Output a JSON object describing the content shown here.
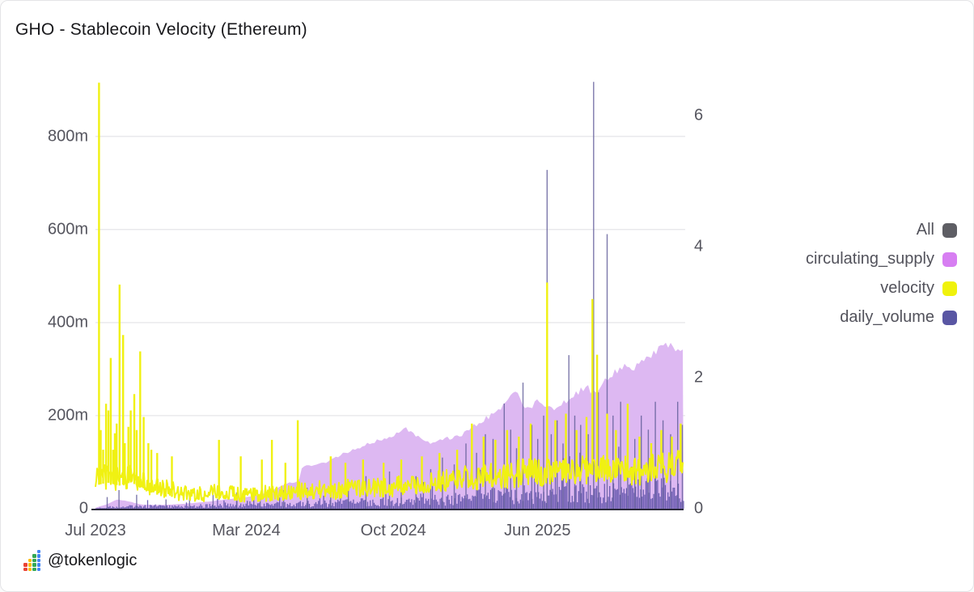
{
  "title": "GHO - Stablecoin Velocity (Ethereum)",
  "footer": {
    "handle": "@tokenlogic",
    "logo": {
      "column_colors": [
        "#ea4335",
        "#fbbc05",
        "#34a853",
        "#4285f4"
      ],
      "column_heights": [
        2,
        3,
        4,
        5
      ]
    }
  },
  "legend": [
    {
      "label": "All",
      "color": "#5e5e64"
    },
    {
      "label": "circulating_supply",
      "color": "#d77ef2"
    },
    {
      "label": "velocity",
      "color": "#f0f20c"
    },
    {
      "label": "daily_volume",
      "color": "#5956a3"
    }
  ],
  "chart_data": {
    "type": "area",
    "title": "GHO - Stablecoin Velocity (Ethereum)",
    "x_axis": {
      "ticks": [
        {
          "pos": 0.0,
          "label": "Jul 2023"
        },
        {
          "pos": 0.2565,
          "label": "Mar 2024"
        },
        {
          "pos": 0.5065,
          "label": "Oct 2024"
        },
        {
          "pos": 0.7515,
          "label": "Jun 2025"
        }
      ]
    },
    "left_axis": {
      "unit": "millions",
      "max": 928,
      "ticks": [
        {
          "value": 0,
          "label": "0"
        },
        {
          "value": 200,
          "label": "200m"
        },
        {
          "value": 400,
          "label": "400m"
        },
        {
          "value": 600,
          "label": "600m"
        },
        {
          "value": 800,
          "label": "800m"
        }
      ],
      "grid": true
    },
    "right_axis": {
      "unit": "velocity",
      "max": 6.59,
      "ticks": [
        {
          "value": 0,
          "label": "0"
        },
        {
          "value": 2,
          "label": "2"
        },
        {
          "value": 4,
          "label": "4"
        },
        {
          "value": 6,
          "label": "6"
        }
      ],
      "grid": false
    },
    "baseline_color": "#2b2a3a",
    "grid_color": "#e9e9ec",
    "series": [
      {
        "name": "circulating_supply",
        "axis": "left",
        "style": "area",
        "color": "#ddb8f2",
        "jitter": 0.06,
        "points": [
          [
            0.0,
            2
          ],
          [
            0.02,
            10
          ],
          [
            0.037,
            20
          ],
          [
            0.055,
            16
          ],
          [
            0.079,
            9
          ],
          [
            0.1,
            8
          ],
          [
            0.13,
            9
          ],
          [
            0.155,
            11
          ],
          [
            0.18,
            14
          ],
          [
            0.21,
            18
          ],
          [
            0.254,
            25
          ],
          [
            0.279,
            30
          ],
          [
            0.306,
            42
          ],
          [
            0.327,
            55
          ],
          [
            0.345,
            58
          ],
          [
            0.352,
            90
          ],
          [
            0.382,
            95
          ],
          [
            0.403,
            105
          ],
          [
            0.423,
            120
          ],
          [
            0.451,
            133
          ],
          [
            0.479,
            145
          ],
          [
            0.499,
            152
          ],
          [
            0.516,
            165
          ],
          [
            0.527,
            172
          ],
          [
            0.548,
            155
          ],
          [
            0.568,
            141
          ],
          [
            0.596,
            150
          ],
          [
            0.623,
            160
          ],
          [
            0.651,
            185
          ],
          [
            0.672,
            200
          ],
          [
            0.69,
            215
          ],
          [
            0.706,
            240
          ],
          [
            0.716,
            254
          ],
          [
            0.727,
            225
          ],
          [
            0.737,
            210
          ],
          [
            0.75,
            232
          ],
          [
            0.764,
            222
          ],
          [
            0.778,
            215
          ],
          [
            0.796,
            228
          ],
          [
            0.817,
            248
          ],
          [
            0.833,
            262
          ],
          [
            0.848,
            250
          ],
          [
            0.865,
            275
          ],
          [
            0.881,
            292
          ],
          [
            0.897,
            308
          ],
          [
            0.913,
            297
          ],
          [
            0.931,
            315
          ],
          [
            0.948,
            335
          ],
          [
            0.966,
            352
          ],
          [
            0.982,
            348
          ],
          [
            1.0,
            338
          ]
        ]
      },
      {
        "name": "daily_volume",
        "axis": "left",
        "style": "bars",
        "color": "#6153ab",
        "spike_color": "#66629c",
        "base_points": [
          [
            0.0,
            1
          ],
          [
            0.05,
            4
          ],
          [
            0.1,
            5
          ],
          [
            0.15,
            4
          ],
          [
            0.2,
            6
          ],
          [
            0.25,
            6
          ],
          [
            0.3,
            8
          ],
          [
            0.35,
            9
          ],
          [
            0.4,
            10
          ],
          [
            0.45,
            12
          ],
          [
            0.5,
            14
          ],
          [
            0.55,
            14
          ],
          [
            0.6,
            18
          ],
          [
            0.65,
            22
          ],
          [
            0.7,
            26
          ],
          [
            0.75,
            28
          ],
          [
            0.8,
            30
          ],
          [
            0.85,
            32
          ],
          [
            0.9,
            34
          ],
          [
            0.95,
            36
          ],
          [
            1.0,
            38
          ]
        ],
        "spikes": [
          [
            0.02,
            25
          ],
          [
            0.04,
            40
          ],
          [
            0.07,
            30
          ],
          [
            0.12,
            20
          ],
          [
            0.16,
            25
          ],
          [
            0.2,
            30
          ],
          [
            0.24,
            35
          ],
          [
            0.28,
            30
          ],
          [
            0.32,
            40
          ],
          [
            0.36,
            45
          ],
          [
            0.4,
            55
          ],
          [
            0.43,
            60
          ],
          [
            0.46,
            70
          ],
          [
            0.5,
            80
          ],
          [
            0.52,
            95
          ],
          [
            0.545,
            70
          ],
          [
            0.57,
            85
          ],
          [
            0.59,
            110
          ],
          [
            0.61,
            95
          ],
          [
            0.63,
            140
          ],
          [
            0.648,
            120
          ],
          [
            0.663,
            160
          ],
          [
            0.676,
            150
          ],
          [
            0.695,
            226
          ],
          [
            0.706,
            170
          ],
          [
            0.716,
            130
          ],
          [
            0.727,
            271
          ],
          [
            0.742,
            180
          ],
          [
            0.752,
            150
          ],
          [
            0.762,
            200
          ],
          [
            0.768,
            728
          ],
          [
            0.775,
            160
          ],
          [
            0.785,
            190
          ],
          [
            0.795,
            140
          ],
          [
            0.805,
            330
          ],
          [
            0.815,
            200
          ],
          [
            0.825,
            180
          ],
          [
            0.838,
            160
          ],
          [
            0.847,
            917
          ],
          [
            0.855,
            250
          ],
          [
            0.87,
            590
          ],
          [
            0.88,
            200
          ],
          [
            0.893,
            230
          ],
          [
            0.905,
            180
          ],
          [
            0.917,
            150
          ],
          [
            0.928,
            200
          ],
          [
            0.94,
            170
          ],
          [
            0.952,
            230
          ],
          [
            0.965,
            190
          ],
          [
            0.978,
            160
          ],
          [
            0.99,
            230
          ],
          [
            0.998,
            180
          ]
        ]
      },
      {
        "name": "velocity",
        "axis": "right",
        "style": "line",
        "color": "#f0f112",
        "base_points": [
          [
            0.0,
            0.45
          ],
          [
            0.02,
            0.5
          ],
          [
            0.04,
            0.45
          ],
          [
            0.06,
            0.5
          ],
          [
            0.08,
            0.42
          ],
          [
            0.1,
            0.32
          ],
          [
            0.12,
            0.3
          ],
          [
            0.14,
            0.26
          ],
          [
            0.16,
            0.22
          ],
          [
            0.18,
            0.22
          ],
          [
            0.2,
            0.26
          ],
          [
            0.22,
            0.22
          ],
          [
            0.24,
            0.24
          ],
          [
            0.26,
            0.2
          ],
          [
            0.28,
            0.24
          ],
          [
            0.3,
            0.22
          ],
          [
            0.32,
            0.24
          ],
          [
            0.34,
            0.28
          ],
          [
            0.36,
            0.26
          ],
          [
            0.38,
            0.3
          ],
          [
            0.4,
            0.27
          ],
          [
            0.42,
            0.3
          ],
          [
            0.44,
            0.33
          ],
          [
            0.46,
            0.3
          ],
          [
            0.48,
            0.34
          ],
          [
            0.5,
            0.32
          ],
          [
            0.52,
            0.35
          ],
          [
            0.54,
            0.38
          ],
          [
            0.56,
            0.36
          ],
          [
            0.58,
            0.4
          ],
          [
            0.6,
            0.44
          ],
          [
            0.62,
            0.48
          ],
          [
            0.64,
            0.46
          ],
          [
            0.66,
            0.5
          ],
          [
            0.68,
            0.52
          ],
          [
            0.7,
            0.5
          ],
          [
            0.72,
            0.54
          ],
          [
            0.74,
            0.58
          ],
          [
            0.76,
            0.56
          ],
          [
            0.78,
            0.58
          ],
          [
            0.8,
            0.55
          ],
          [
            0.82,
            0.58
          ],
          [
            0.84,
            0.62
          ],
          [
            0.86,
            0.6
          ],
          [
            0.88,
            0.56
          ],
          [
            0.9,
            0.6
          ],
          [
            0.92,
            0.56
          ],
          [
            0.94,
            0.6
          ],
          [
            0.96,
            0.64
          ],
          [
            0.98,
            0.62
          ],
          [
            1.0,
            0.68
          ]
        ],
        "spikes": [
          [
            0.006,
            6.5
          ],
          [
            0.009,
            1.2
          ],
          [
            0.013,
            0.9
          ],
          [
            0.018,
            1.6
          ],
          [
            0.022,
            1.5
          ],
          [
            0.026,
            2.3
          ],
          [
            0.03,
            0.9
          ],
          [
            0.033,
            1.15
          ],
          [
            0.036,
            1.3
          ],
          [
            0.041,
            3.42
          ],
          [
            0.047,
            2.65
          ],
          [
            0.05,
            1.0
          ],
          [
            0.056,
            1.25
          ],
          [
            0.06,
            1.5
          ],
          [
            0.066,
            1.75
          ],
          [
            0.07,
            1.2
          ],
          [
            0.076,
            2.4
          ],
          [
            0.082,
            1.4
          ],
          [
            0.09,
            1.0
          ],
          [
            0.095,
            0.9
          ],
          [
            0.105,
            0.85
          ],
          [
            0.13,
            0.8
          ],
          [
            0.21,
            1.05
          ],
          [
            0.247,
            0.8
          ],
          [
            0.283,
            0.75
          ],
          [
            0.3,
            1.05
          ],
          [
            0.323,
            0.7
          ],
          [
            0.344,
            1.35
          ],
          [
            0.4,
            0.8
          ],
          [
            0.425,
            0.7
          ],
          [
            0.455,
            0.75
          ],
          [
            0.49,
            0.7
          ],
          [
            0.52,
            0.75
          ],
          [
            0.555,
            0.8
          ],
          [
            0.585,
            0.85
          ],
          [
            0.615,
            0.9
          ],
          [
            0.64,
            1.3
          ],
          [
            0.66,
            1.1
          ],
          [
            0.68,
            1.05
          ],
          [
            0.7,
            1.2
          ],
          [
            0.72,
            1.1
          ],
          [
            0.74,
            1.3
          ],
          [
            0.768,
            3.45
          ],
          [
            0.782,
            1.35
          ],
          [
            0.8,
            1.45
          ],
          [
            0.818,
            1.2
          ],
          [
            0.835,
            1.4
          ],
          [
            0.845,
            3.2
          ],
          [
            0.853,
            2.35
          ],
          [
            0.87,
            1.45
          ],
          [
            0.885,
            1.2
          ],
          [
            0.905,
            1.6
          ],
          [
            0.925,
            1.1
          ],
          [
            0.945,
            1.0
          ],
          [
            0.962,
            1.2
          ],
          [
            0.98,
            1.1
          ],
          [
            0.995,
            1.3
          ]
        ]
      }
    ]
  }
}
